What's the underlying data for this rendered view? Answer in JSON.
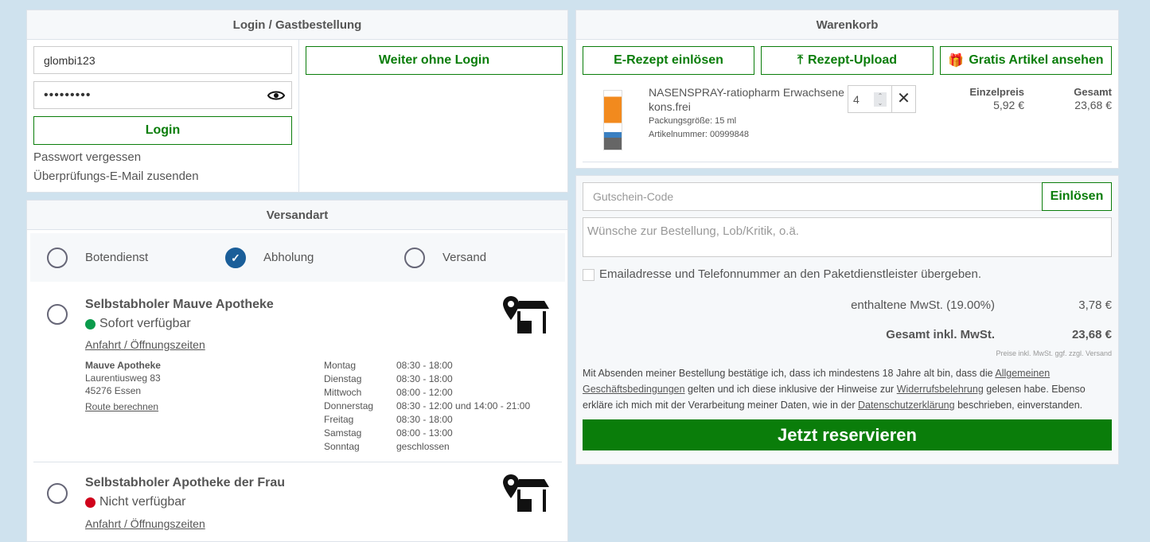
{
  "login": {
    "title": "Login / Gastbestellung",
    "username": "glombi123",
    "password": "•••••••••",
    "login_label": "Login",
    "forgot": "Passwort vergessen",
    "verify": "Überprüfungs-E-Mail zusenden",
    "guest_label": "Weiter ohne Login"
  },
  "shipping": {
    "title": "Versandart",
    "options": [
      {
        "label": "Botendienst",
        "selected": false
      },
      {
        "label": "Abholung",
        "selected": true
      },
      {
        "label": "Versand",
        "selected": false
      }
    ],
    "stores": [
      {
        "name": "Selbstabholer Mauve Apotheke",
        "status": "Sofort verfügbar",
        "status_color": "#0a9b4b",
        "link": "Anfahrt / Öffnungszeiten",
        "addr_name": "Mauve Apotheke",
        "street": "Laurentiusweg 83",
        "city": "45276 Essen",
        "route": "Route berechnen",
        "hours": [
          [
            "Montag",
            "08:30 - 18:00"
          ],
          [
            "Dienstag",
            "08:30 - 18:00"
          ],
          [
            "Mittwoch",
            "08:00 - 12:00"
          ],
          [
            "Donnerstag",
            "08:30 - 12:00 und 14:00 - 21:00"
          ],
          [
            "Freitag",
            "08:30 - 18:00"
          ],
          [
            "Samstag",
            "08:00 - 13:00"
          ],
          [
            "Sonntag",
            "geschlossen"
          ]
        ]
      },
      {
        "name": "Selbstabholer Apotheke der Frau",
        "status": "Nicht verfügbar",
        "status_color": "#d0021b",
        "link": "Anfahrt / Öffnungszeiten"
      }
    ]
  },
  "cart": {
    "title": "Warenkorb",
    "btn_erezept": "E-Rezept einlösen",
    "btn_upload": "Rezept-Upload",
    "btn_gratis": "Gratis Artikel ansehen",
    "item": {
      "name": "NASENSPRAY-ratiopharm Erwachsene kons.frei",
      "size": "Packungsgröße: 15 ml",
      "number": "Artikelnummer: 00999848",
      "qty": "4",
      "unit_label": "Einzelpreis",
      "unit_price": "5,92 €",
      "total_label": "Gesamt",
      "total": "23,68 €"
    }
  },
  "order": {
    "voucher_placeholder": "Gutschein-Code",
    "redeem": "Einlösen",
    "comment_placeholder": "Wünsche zur Bestellung, Lob/Kritik, o.ä.",
    "consent": "Emailadresse und Telefonnummer an den Paketdienstleister übergeben.",
    "vat_label": "enthaltene MwSt. (19.00%)",
    "vat": "3,78 €",
    "total_label": "Gesamt inkl. MwSt.",
    "total": "23,68 €",
    "price_note": "Preise inkl. MwSt. ggf. zzgl. Versand",
    "legal": [
      "Mit Absenden meiner Bestellung bestätige ich, dass ich mindestens 18 Jahre alt bin, dass die ",
      "Allgemeinen Geschäftsbedingungen",
      " gelten und ich diese inklusive der Hinweise zur ",
      "Widerrufsbelehrung",
      " gelesen habe. Ebenso erkläre ich mich mit der Verarbeitung meiner Daten, wie in der ",
      "Datenschutzerklärung",
      " beschrieben, einverstanden."
    ],
    "submit": "Jetzt reservieren",
    "accent": "#0a7d0a"
  }
}
